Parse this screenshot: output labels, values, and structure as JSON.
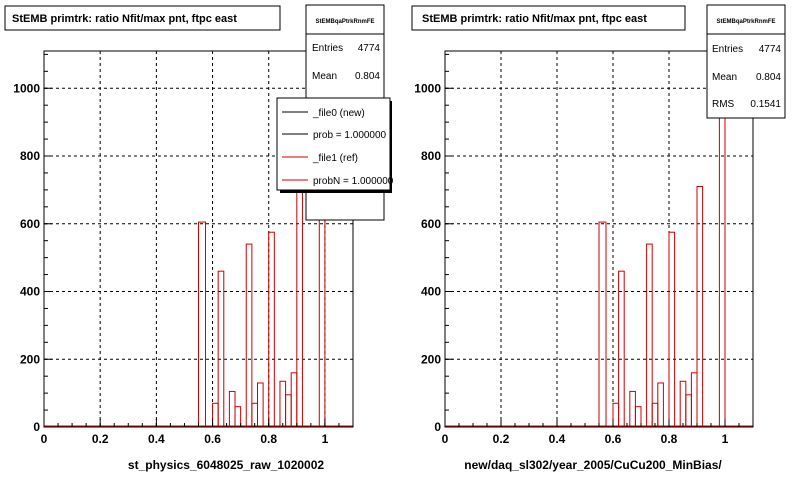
{
  "panels": [
    {
      "title": "StEMB primtrk: ratio Nfit/max pnt, ftpc east",
      "xlabel": "st_physics_6048025_raw_1020002",
      "stats": {
        "name": "StEMBqaPtrkRnmFE",
        "rows": [
          {
            "label": "Entries",
            "value": "4774"
          },
          {
            "label": "Mean",
            "value": "0.804"
          }
        ]
      },
      "legend": [
        {
          "text": "_file0 (new)",
          "color": "#000000"
        },
        {
          "text": "prob = 1.000000",
          "color": "#000000"
        },
        {
          "text": "_file1 (ref)",
          "color": "#cc0000"
        },
        {
          "text": "probN = 1.000000",
          "color": "#cc0000"
        }
      ]
    },
    {
      "title": "StEMB primtrk: ratio Nfit/max pnt, ftpc east",
      "xlabel": "new/daq_sl302/year_2005/CuCu200_MinBias/",
      "stats": {
        "name": "StEMBqaPtrkRnmFE",
        "rows": [
          {
            "label": "Entries",
            "value": "4774"
          },
          {
            "label": "Mean",
            "value": "0.804"
          },
          {
            "label": "RMS",
            "value": "0.1541"
          }
        ]
      },
      "legend": []
    }
  ],
  "chart_data": {
    "type": "bar",
    "xlim": [
      0,
      1.1
    ],
    "ylim": [
      0,
      1110
    ],
    "xticks": [
      "0",
      "0.2",
      "0.4",
      "0.6",
      "0.8",
      "1"
    ],
    "yticks": [
      "0",
      "200",
      "400",
      "600",
      "800",
      "1000"
    ],
    "grid": true,
    "line_color": "#cc0000",
    "bins": [
      {
        "x0": 0.55,
        "x1": 0.575,
        "y": 605
      },
      {
        "x0": 0.575,
        "x1": 0.6,
        "y": 0
      },
      {
        "x0": 0.6,
        "x1": 0.62,
        "y": 70
      },
      {
        "x0": 0.62,
        "x1": 0.64,
        "y": 460
      },
      {
        "x0": 0.64,
        "x1": 0.66,
        "y": 0
      },
      {
        "x0": 0.66,
        "x1": 0.68,
        "y": 105
      },
      {
        "x0": 0.68,
        "x1": 0.7,
        "y": 60
      },
      {
        "x0": 0.7,
        "x1": 0.72,
        "y": 0
      },
      {
        "x0": 0.72,
        "x1": 0.74,
        "y": 540
      },
      {
        "x0": 0.74,
        "x1": 0.76,
        "y": 70
      },
      {
        "x0": 0.76,
        "x1": 0.78,
        "y": 130
      },
      {
        "x0": 0.78,
        "x1": 0.8,
        "y": 0
      },
      {
        "x0": 0.8,
        "x1": 0.82,
        "y": 575
      },
      {
        "x0": 0.82,
        "x1": 0.84,
        "y": 0
      },
      {
        "x0": 0.84,
        "x1": 0.86,
        "y": 135
      },
      {
        "x0": 0.86,
        "x1": 0.88,
        "y": 95
      },
      {
        "x0": 0.88,
        "x1": 0.9,
        "y": 160
      },
      {
        "x0": 0.9,
        "x1": 0.92,
        "y": 710
      },
      {
        "x0": 0.92,
        "x1": 0.98,
        "y": 0
      },
      {
        "x0": 0.98,
        "x1": 1.0,
        "y": 1060
      }
    ]
  }
}
